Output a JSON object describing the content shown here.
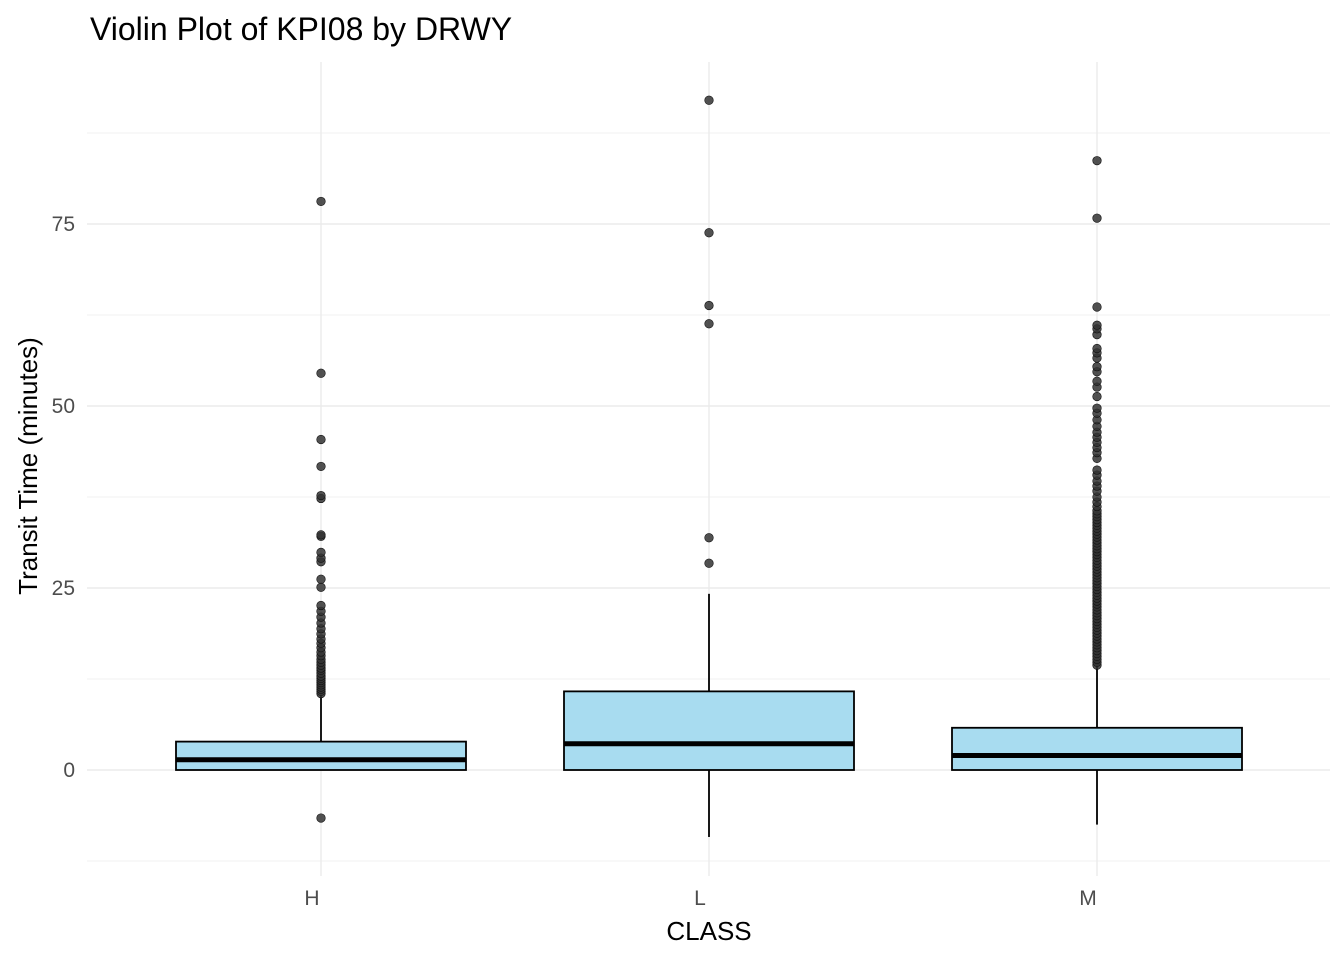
{
  "chart_data": {
    "type": "boxplot",
    "title": "Violin Plot of KPI08 by DRWY",
    "xlabel": "CLASS",
    "ylabel": "Transit Time (minutes)",
    "categories": [
      "H",
      "L",
      "M"
    ],
    "ylim": [
      -12.5,
      97
    ],
    "y_ticks": [
      0,
      25,
      50,
      75
    ],
    "y_tick_labels": [
      "0",
      "25",
      "50",
      "75"
    ],
    "grid": true,
    "fill_color": "#a8dcf0",
    "box_stroke_color": "#000000",
    "outlier_color": "#333333",
    "boxes": [
      {
        "category": "H",
        "q1": 0,
        "median": 1.4,
        "q3": 3.9,
        "whisker_low": 0,
        "whisker_high": 10.2,
        "outliers": [
          -6.6,
          10.5,
          10.8,
          11.1,
          11.4,
          11.7,
          12.0,
          12.3,
          12.6,
          12.9,
          13.3,
          13.7,
          14.0,
          14.4,
          14.8,
          15.2,
          15.7,
          16.2,
          16.8,
          17.4,
          18.0,
          18.7,
          19.4,
          20.2,
          21.0,
          21.8,
          22.6,
          25.1,
          26.2,
          28.6,
          29.1,
          29.9,
          32.1,
          32.3,
          37.3,
          37.7,
          41.7,
          45.4,
          54.5,
          78.1
        ]
      },
      {
        "category": "L",
        "q1": 0,
        "median": 3.6,
        "q3": 10.8,
        "whisker_low": -9.2,
        "whisker_high": 24.2,
        "outliers": [
          28.4,
          31.9,
          61.3,
          63.8,
          73.8,
          92.0
        ]
      },
      {
        "category": "M",
        "q1": 0,
        "median": 2.0,
        "q3": 5.8,
        "whisker_low": -7.5,
        "whisker_high": 14.2,
        "outliers": [
          14.4,
          14.8,
          15.2,
          15.6,
          16.0,
          16.4,
          16.8,
          17.2,
          17.6,
          18.0,
          18.4,
          18.8,
          19.2,
          19.6,
          20.0,
          20.4,
          20.8,
          21.2,
          21.6,
          22.0,
          22.4,
          22.8,
          23.2,
          23.6,
          24.0,
          24.4,
          24.8,
          25.2,
          25.6,
          26.0,
          26.4,
          26.8,
          27.2,
          27.6,
          28.0,
          28.4,
          28.8,
          29.2,
          29.6,
          30.0,
          30.4,
          30.8,
          31.2,
          31.6,
          32.0,
          32.4,
          32.8,
          33.2,
          33.6,
          34.0,
          34.4,
          34.8,
          35.2,
          35.6,
          36.2,
          36.8,
          37.5,
          38.3,
          39.0,
          39.7,
          40.5,
          41.2,
          42.8,
          43.6,
          44.3,
          45.0,
          45.7,
          46.4,
          47.2,
          48.1,
          49.0,
          49.7,
          51.3,
          52.6,
          53.4,
          54.7,
          55.4,
          56.6,
          57.3,
          57.9,
          59.8,
          60.6,
          61.1,
          63.6,
          75.8,
          83.7
        ]
      }
    ]
  }
}
